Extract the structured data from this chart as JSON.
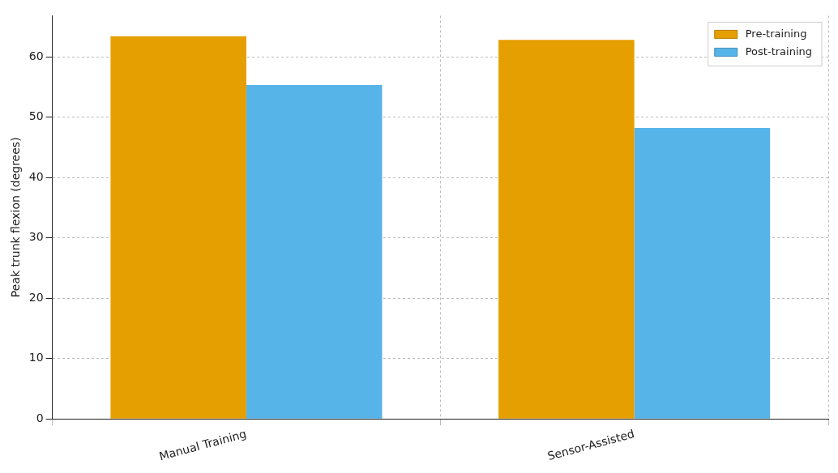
{
  "chart_data": {
    "type": "bar",
    "ylabel": "Peak trunk flexion (degrees)",
    "categories": [
      "Manual Training",
      "Sensor-Assisted"
    ],
    "series": [
      {
        "name": "Pre-training",
        "color": "#e69f00",
        "values": [
          63.4,
          62.8
        ]
      },
      {
        "name": "Post-training",
        "color": "#56b4e9",
        "values": [
          55.3,
          48.2
        ]
      }
    ],
    "ylim": [
      0,
      66.8
    ],
    "yticks": [
      0,
      10,
      20,
      30,
      40,
      50,
      60
    ],
    "grid": true,
    "legend": "top right"
  }
}
